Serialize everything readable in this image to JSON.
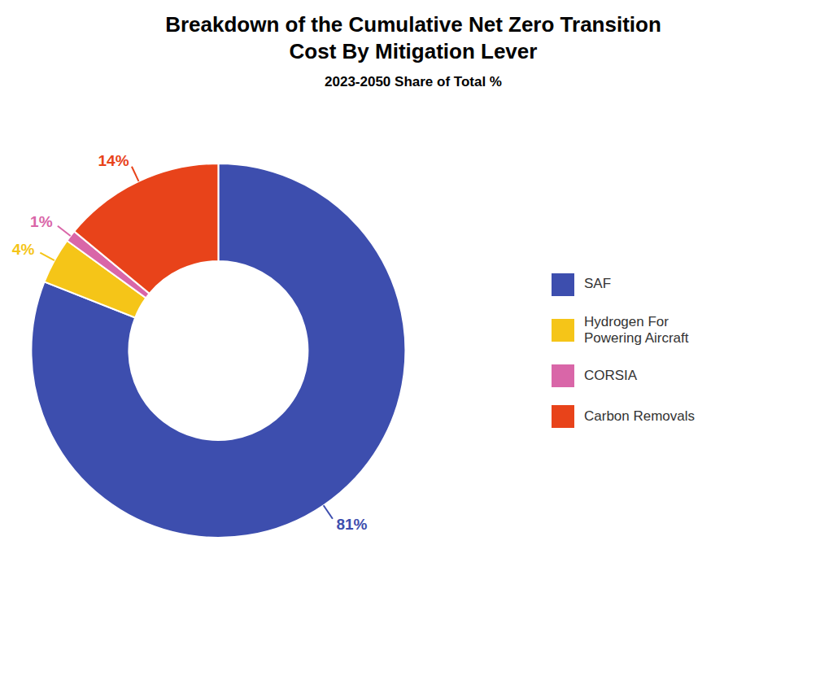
{
  "chart_data": {
    "type": "pie",
    "title": "Breakdown of the Cumulative Net Zero Transition\nCost By Mitigation Lever",
    "subtitle": "2023-2050 Share of Total %",
    "categories": [
      "SAF",
      "Hydrogen For\nPowering Aircraft",
      "CORSIA",
      "Carbon Removals"
    ],
    "values": [
      81,
      4,
      1,
      14
    ],
    "value_labels": [
      "81%",
      "4%",
      "1%",
      "14%"
    ],
    "colors": [
      "#3D4EAE",
      "#F5C518",
      "#D966A8",
      "#E8431A"
    ],
    "data_labels": true,
    "legend": "right"
  }
}
